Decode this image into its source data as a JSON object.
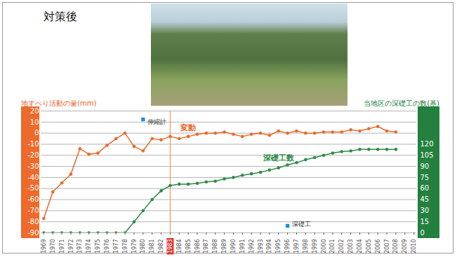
{
  "chart_data": {
    "type": "line",
    "title": "対策後",
    "categories": [
      "1969",
      "1970",
      "1971",
      "1972",
      "1973",
      "1974",
      "1975",
      "1976",
      "1977",
      "1978",
      "1979",
      "1980",
      "1981",
      "1982",
      "1983",
      "1984",
      "1985",
      "1986",
      "1987",
      "1988",
      "1989",
      "1990",
      "1991",
      "1992",
      "1993",
      "1994",
      "1995",
      "1996",
      "1997",
      "1998",
      "1999",
      "2000",
      "2001",
      "2002",
      "2003",
      "2004",
      "2005",
      "2006",
      "2007",
      "2008",
      "2009",
      "2010"
    ],
    "series": [
      {
        "name": "変動",
        "color": "#ea6a2c",
        "marker": "circle",
        "values": [
          -77,
          -53,
          -45,
          -37,
          -14,
          -19,
          -18,
          -11,
          -5,
          0,
          -12,
          -16,
          -5,
          -6,
          -3,
          -5,
          -3,
          -1,
          0,
          0,
          1,
          -1,
          -3,
          -1,
          0,
          -2,
          2,
          0,
          2,
          0,
          0,
          1,
          1,
          1,
          3,
          2,
          4,
          6,
          2,
          1,
          null,
          null
        ]
      },
      {
        "name": "深礎工数",
        "color": "#2e8b46",
        "marker": "circle",
        "axis": "y2",
        "values": [
          0,
          0,
          0,
          0,
          0,
          0,
          0,
          0,
          0,
          0,
          15,
          30,
          45,
          57,
          64,
          66,
          66,
          67,
          69,
          70,
          73,
          75,
          78,
          80,
          82,
          85,
          88,
          92,
          95,
          99,
          102,
          105,
          108,
          110,
          111,
          113,
          113,
          113,
          113,
          113,
          null,
          null
        ]
      }
    ],
    "ylabel": "地すべり活動の量(mm)",
    "y2label": "当地区の深礎工の数(基)",
    "ylim": [
      -90,
      20
    ],
    "yticks": [
      20,
      10,
      0,
      -10,
      -20,
      -30,
      -40,
      -50,
      -60,
      -70,
      -80,
      -90
    ],
    "y2lim": [
      0,
      165
    ],
    "y2ticks": [
      0,
      15,
      30,
      45,
      60,
      75,
      90,
      105,
      120
    ],
    "grid": true,
    "annotations": [
      {
        "text": "伸縮計"
      },
      {
        "text": "深礎工"
      },
      {
        "x": "1983",
        "type": "rule"
      }
    ]
  }
}
